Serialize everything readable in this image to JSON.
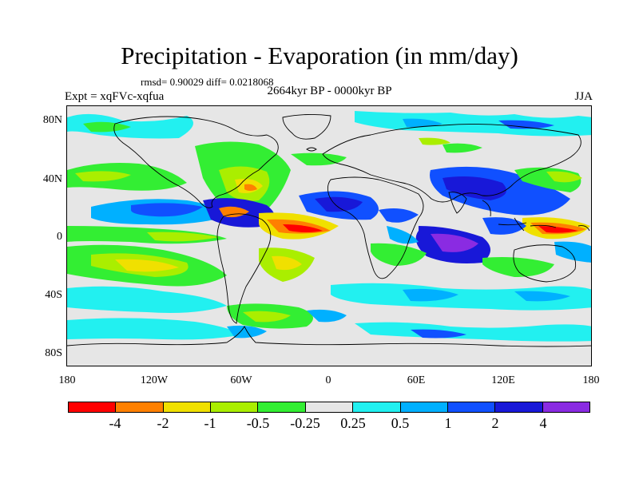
{
  "title": "Precipitation - Evaporation (in mm/day)",
  "stats_line": "rmsd= 0.90029 diff= 0.0218068",
  "period": "2664kyr BP - 0000kyr BP",
  "experiment": "Expt = xqFVc-xqfua",
  "season": "JJA",
  "lat_labels": [
    "80N",
    "40N",
    "0",
    "40S",
    "80S"
  ],
  "lon_labels": [
    "180",
    "120W",
    "60W",
    "0",
    "60E",
    "120E",
    "180"
  ],
  "colorbar": {
    "labels": [
      "-4",
      "-2",
      "-1",
      "-0.5",
      "-0.25",
      "0.25",
      "0.5",
      "1",
      "2",
      "4"
    ],
    "colors": [
      "#ff0000",
      "#ff8000",
      "#f0e000",
      "#aaee00",
      "#33ee33",
      "#e6e6e6",
      "#22f0f0",
      "#00b0ff",
      "#1050ff",
      "#1818d8",
      "#8a2be2"
    ]
  },
  "legend_colors": {
    "land_outline": "#000000",
    "background": "#e6e6e6"
  }
}
